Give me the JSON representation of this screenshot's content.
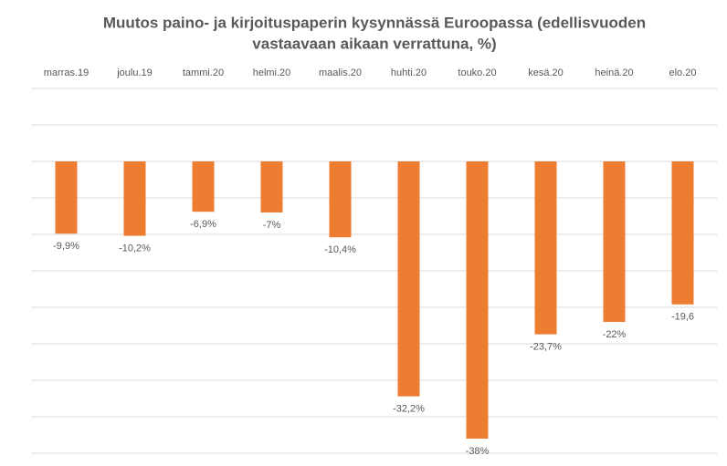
{
  "chart_data": {
    "type": "bar",
    "title": [
      "Muutos paino- ja kirjoituspaperin kysynnässä Euroopassa (edellisvuoden",
      "vastaavaan aikaan verrattuna, %)"
    ],
    "categories": [
      "marras.19",
      "joulu.19",
      "tammi.20",
      "helmi.20",
      "maalis.20",
      "huhti.20",
      "touko.20",
      "kesä.20",
      "heinä.20",
      "elo.20"
    ],
    "values": [
      -9.9,
      -10.2,
      -6.9,
      -7,
      -10.4,
      -32.2,
      -38,
      -23.7,
      -22,
      -19.6
    ],
    "value_labels": [
      "-9,9%",
      "-10,2%",
      "-6,9%",
      "-7%",
      "-10,4%",
      "-32,2%",
      "-38%",
      "-23,7%",
      "-22%",
      "-19,6"
    ],
    "color": "#ed7d31",
    "ylim": [
      -40,
      10
    ],
    "yticks": [
      -40,
      -35,
      -30,
      -25,
      -20,
      -15,
      -10,
      -5,
      0,
      5,
      10
    ],
    "grid": true
  }
}
